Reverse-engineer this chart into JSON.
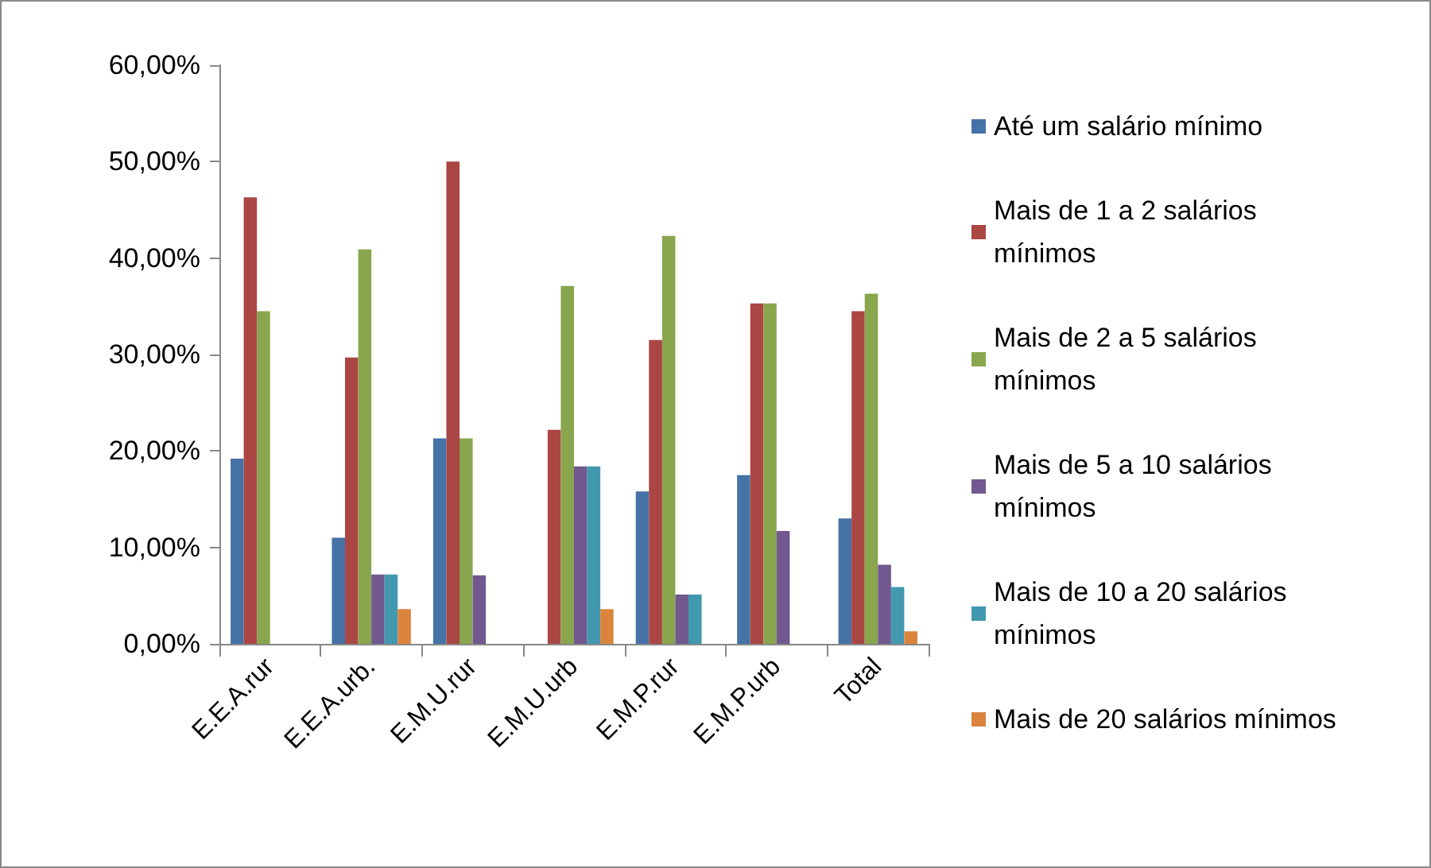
{
  "chart_data": {
    "type": "bar",
    "categories": [
      "E.E.A.rur",
      "E.E.A.urb.",
      "E.M.U.rur",
      "E.M.U.urb",
      "E.M.P.rur",
      "E.M.P.urb",
      "Total"
    ],
    "series": [
      {
        "name": "Até um salário mínimo",
        "color": "#4572a7",
        "values": [
          19.2,
          11.0,
          21.3,
          0,
          15.8,
          17.5,
          13.0
        ]
      },
      {
        "name": "Mais de 1 a 2 salários mínimos",
        "color": "#aa4643",
        "values": [
          46.3,
          29.7,
          50.0,
          22.2,
          31.5,
          35.3,
          34.5
        ]
      },
      {
        "name": "Mais de 2 a 5 salários mínimos",
        "color": "#89a54e",
        "values": [
          34.5,
          40.9,
          21.3,
          37.1,
          42.3,
          35.3,
          36.3
        ]
      },
      {
        "name": "Mais de 5 a 10 salários mínimos",
        "color": "#71588f",
        "values": [
          0,
          7.2,
          7.1,
          18.4,
          5.1,
          11.7,
          8.2
        ]
      },
      {
        "name": "Mais de 10 a 20 salários mínimos",
        "color": "#4198af",
        "values": [
          0,
          7.2,
          0,
          18.4,
          5.1,
          0,
          5.9
        ]
      },
      {
        "name": "Mais de 20 salários mínimos",
        "color": "#db843d",
        "values": [
          0,
          3.6,
          0,
          3.6,
          0,
          0,
          1.3
        ]
      }
    ],
    "ylim": [
      0,
      60
    ],
    "yticks": [
      {
        "value": 0,
        "label": "0,00%"
      },
      {
        "value": 10,
        "label": "10,00%"
      },
      {
        "value": 20,
        "label": "20,00%"
      },
      {
        "value": 30,
        "label": "30,00%"
      },
      {
        "value": 40,
        "label": "40,00%"
      },
      {
        "value": 50,
        "label": "50,00%"
      },
      {
        "value": 60,
        "label": "60,00%"
      }
    ],
    "grid": false,
    "legend": "right"
  }
}
